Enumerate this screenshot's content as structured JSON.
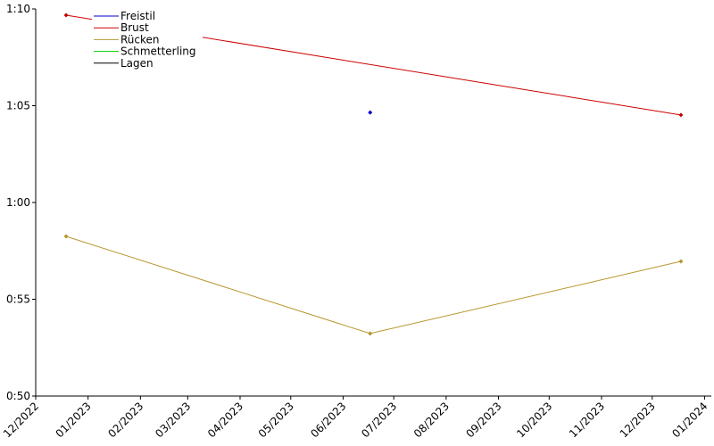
{
  "chart_data": {
    "type": "line",
    "series": [
      {
        "name": "Freistil",
        "color": "#0000cc",
        "x": [
          "2023-06-17"
        ],
        "values": [
          64.65
        ]
      },
      {
        "name": "Brust",
        "color": "#cc0000",
        "x": [
          "2022-12-19",
          "2023-12-18"
        ],
        "values": [
          69.68,
          64.52
        ]
      },
      {
        "name": "Rücken",
        "color": "#b8962e",
        "x": [
          "2022-12-19",
          "2023-06-17",
          "2023-12-18"
        ],
        "values": [
          58.25,
          53.23,
          56.96
        ]
      },
      {
        "name": "Schmetterling",
        "color": "#00cc00",
        "x": [],
        "values": []
      },
      {
        "name": "Lagen",
        "color": "#000000",
        "x": [],
        "values": []
      }
    ],
    "ylim": [
      50,
      70
    ],
    "yticks": [
      {
        "value": 50,
        "label": "0:50"
      },
      {
        "value": 55,
        "label": "0:55"
      },
      {
        "value": 60,
        "label": "1:00"
      },
      {
        "value": 65,
        "label": "1:05"
      },
      {
        "value": 70,
        "label": "1:10"
      }
    ],
    "xlim": [
      "2022-12-01",
      "2024-01-05"
    ],
    "xticks": [
      {
        "value": "2022-12-01",
        "label": "12/2022"
      },
      {
        "value": "2023-01-01",
        "label": "01/2023"
      },
      {
        "value": "2023-02-01",
        "label": "02/2023"
      },
      {
        "value": "2023-03-01",
        "label": "03/2023"
      },
      {
        "value": "2023-04-01",
        "label": "04/2023"
      },
      {
        "value": "2023-05-01",
        "label": "05/2023"
      },
      {
        "value": "2023-06-01",
        "label": "06/2023"
      },
      {
        "value": "2023-07-01",
        "label": "07/2023"
      },
      {
        "value": "2023-08-01",
        "label": "08/2023"
      },
      {
        "value": "2023-09-01",
        "label": "09/2023"
      },
      {
        "value": "2023-10-01",
        "label": "10/2023"
      },
      {
        "value": "2023-11-01",
        "label": "11/2023"
      },
      {
        "value": "2023-12-01",
        "label": "12/2023"
      },
      {
        "value": "2024-01-01",
        "label": "01/2024"
      }
    ],
    "legend": "upper left",
    "grid": false
  }
}
